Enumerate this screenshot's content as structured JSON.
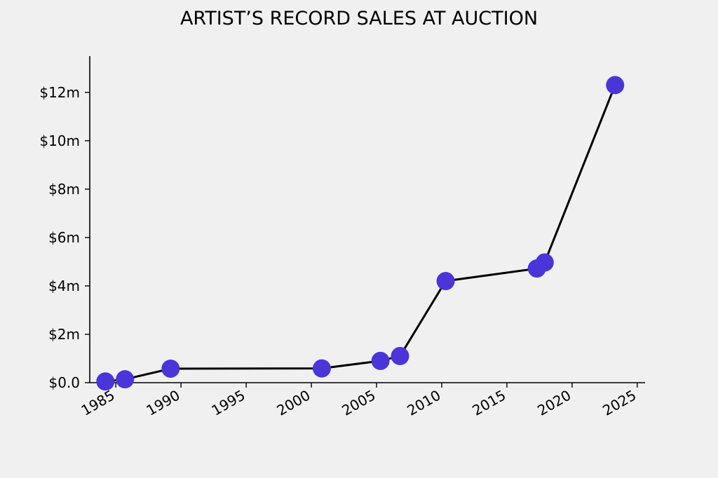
{
  "chart_data": {
    "type": "line",
    "title": "ARTIST’S RECORD SALES AT AUCTION",
    "xlabel": "",
    "ylabel": "",
    "xlim": [
      1983.0,
      2025.6
    ],
    "ylim": [
      0,
      13.5
    ],
    "grid": false,
    "legend": "none",
    "x_ticks": [
      1985,
      1990,
      1995,
      2000,
      2005,
      2010,
      2015,
      2020,
      2025
    ],
    "x_tick_labels": [
      "1985",
      "1990",
      "1995",
      "2000",
      "2005",
      "2010",
      "2015",
      "2020",
      "2025"
    ],
    "y_ticks": [
      0,
      2,
      4,
      6,
      8,
      10,
      12
    ],
    "y_tick_labels": [
      "$0.0",
      "$2m",
      "$4m",
      "$6m",
      "$8m",
      "$10m",
      "$12m"
    ],
    "series": [
      {
        "x": [
          1984.2,
          1985.7,
          1989.2,
          2000.8,
          2005.3,
          2006.8,
          2010.3,
          2017.3,
          2017.9,
          2023.3
        ],
        "y": [
          0.05,
          0.14,
          0.58,
          0.59,
          0.9,
          1.1,
          4.2,
          4.72,
          4.97,
          12.3
        ]
      }
    ],
    "colors": {
      "line": "#000000",
      "marker": "#4a35d8",
      "background": "#f0f0f0"
    }
  }
}
